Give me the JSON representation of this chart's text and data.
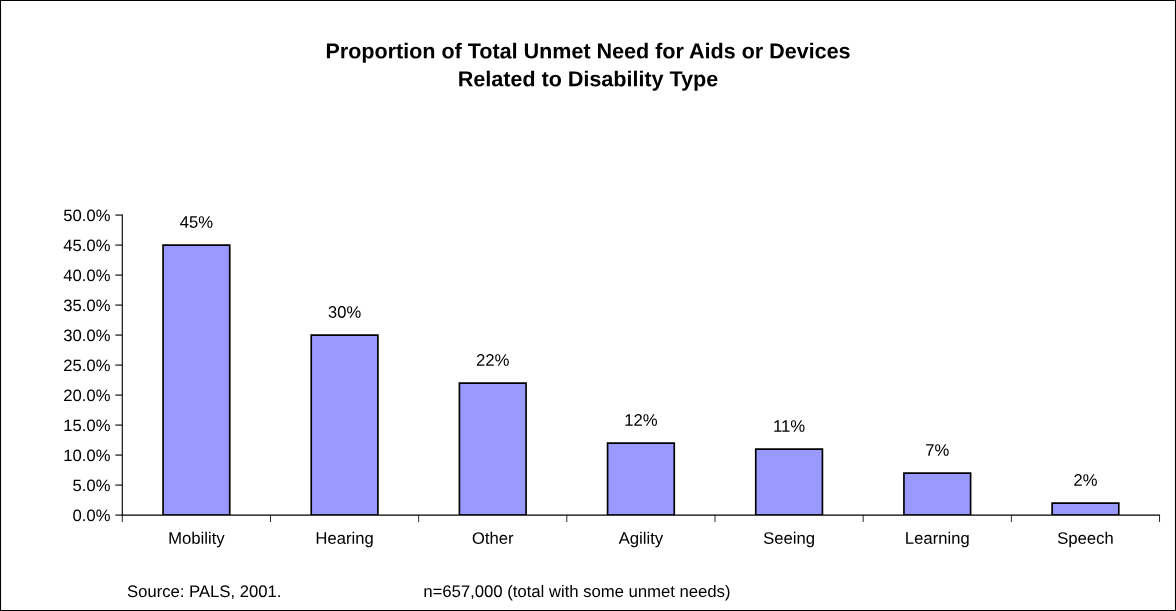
{
  "chart_data": {
    "type": "bar",
    "title": "Proportion of Total Unmet Need for Aids or Devices\nRelated to Disability Type",
    "categories": [
      "Mobility",
      "Hearing",
      "Other",
      "Agility",
      "Seeing",
      "Learning",
      "Speech"
    ],
    "values": [
      45,
      30,
      22,
      12,
      11,
      7,
      2
    ],
    "value_labels": [
      "45%",
      "30%",
      "22%",
      "12%",
      "11%",
      "7%",
      "2%"
    ],
    "color": "#9999ff",
    "ylim": [
      0,
      50
    ],
    "yticks": [
      {
        "value": 0,
        "label": "0.0%"
      },
      {
        "value": 5,
        "label": "5.0%"
      },
      {
        "value": 10,
        "label": "10.0%"
      },
      {
        "value": 15,
        "label": "15.0%"
      },
      {
        "value": 20,
        "label": "20.0%"
      },
      {
        "value": 25,
        "label": "25.0%"
      },
      {
        "value": 30,
        "label": "30.0%"
      },
      {
        "value": 35,
        "label": "35.0%"
      },
      {
        "value": 40,
        "label": "40.0%"
      },
      {
        "value": 45,
        "label": "45.0%"
      },
      {
        "value": 50,
        "label": "50.0%"
      }
    ],
    "grid": false,
    "legend": false,
    "annotations": [
      "Source: PALS, 2001.",
      "n=657,000 (total with some unmet needs)"
    ]
  }
}
